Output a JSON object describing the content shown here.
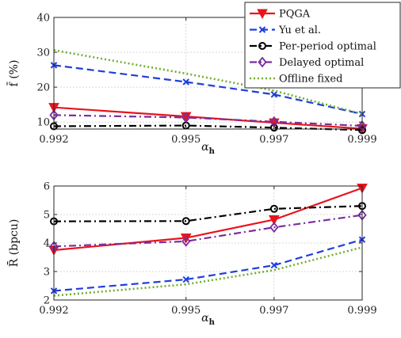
{
  "chart_data": [
    {
      "type": "line",
      "title": "",
      "xlabel_main": "α",
      "xlabel_sub": "h",
      "ylabel": "f̄ (%)",
      "x": [
        0.992,
        0.995,
        0.997,
        0.999
      ],
      "xticks": [
        "0.992",
        "0.995",
        "0.997",
        "0.999"
      ],
      "yticks": [
        10,
        20,
        30,
        40
      ],
      "ylim": [
        8,
        40
      ],
      "grid": true,
      "legend": "top-right",
      "series": [
        {
          "name": "PQGA",
          "color": "#e8141c",
          "dash": "solid",
          "marker": "triangle-down",
          "values": [
            14.2,
            11.6,
            9.8,
            8.1
          ]
        },
        {
          "name": "Yu et al.",
          "color": "#1f3fdc",
          "dash": "dashed",
          "marker": "x",
          "values": [
            26.3,
            21.5,
            17.9,
            12.3
          ]
        },
        {
          "name": "Per-period optimal",
          "color": "#000000",
          "dash": "dashdot",
          "marker": "circle",
          "values": [
            8.8,
            9.0,
            8.4,
            7.7
          ]
        },
        {
          "name": "Delayed optimal",
          "color": "#7b2c9e",
          "dash": "dashdot",
          "marker": "diamond",
          "values": [
            12.0,
            11.3,
            10.1,
            8.9
          ]
        },
        {
          "name": "Offline fixed",
          "color": "#72ad2f",
          "dash": "dotted",
          "marker": "none",
          "values": [
            30.6,
            23.9,
            19.0,
            12.3
          ]
        }
      ]
    },
    {
      "type": "line",
      "title": "",
      "xlabel_main": "α",
      "xlabel_sub": "h",
      "ylabel": "R̄ (bpcu)",
      "x": [
        0.992,
        0.995,
        0.997,
        0.999
      ],
      "xticks": [
        "0.992",
        "0.995",
        "0.997",
        "0.999"
      ],
      "yticks": [
        2,
        3,
        4,
        5,
        6
      ],
      "ylim": [
        2,
        6
      ],
      "grid": true,
      "series": [
        {
          "name": "PQGA",
          "color": "#e8141c",
          "dash": "solid",
          "marker": "triangle-down",
          "values": [
            3.75,
            4.18,
            4.82,
            5.93
          ]
        },
        {
          "name": "Yu et al.",
          "color": "#1f3fdc",
          "dash": "dashed",
          "marker": "x",
          "values": [
            2.32,
            2.72,
            3.22,
            4.12
          ]
        },
        {
          "name": "Per-period optimal",
          "color": "#000000",
          "dash": "dashdot",
          "marker": "circle",
          "values": [
            4.76,
            4.77,
            5.2,
            5.3
          ]
        },
        {
          "name": "Delayed optimal",
          "color": "#7b2c9e",
          "dash": "dashdot",
          "marker": "diamond",
          "values": [
            3.88,
            4.06,
            4.55,
            4.98
          ]
        },
        {
          "name": "Offline fixed",
          "color": "#72ad2f",
          "dash": "dotted",
          "marker": "none",
          "values": [
            2.15,
            2.55,
            3.05,
            3.85
          ]
        }
      ]
    }
  ]
}
